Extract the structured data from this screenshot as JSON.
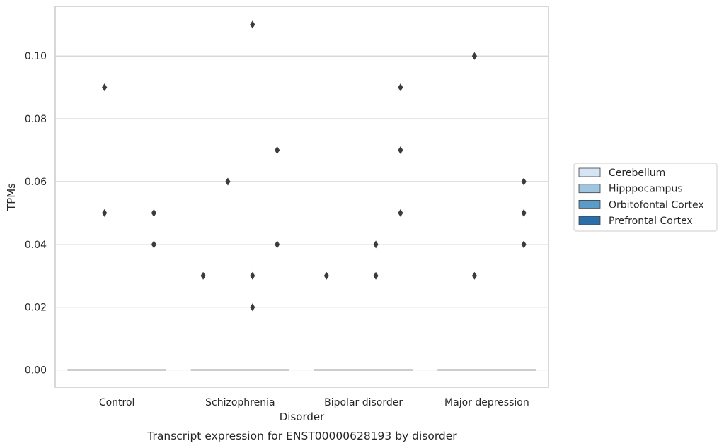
{
  "chart_data": {
    "type": "box",
    "categories": [
      "Control",
      "Schizophrenia",
      "Bipolar disorder",
      "Major depression"
    ],
    "xlabel": "Disorder",
    "ylabel": "TPMs",
    "caption": "Transcript expression for ENST00000628193 by disorder",
    "ylim": [
      -0.0055,
      0.1158
    ],
    "yticks": [
      0.0,
      0.02,
      0.04,
      0.06,
      0.08,
      0.1
    ],
    "ytick_labels": [
      "0.00",
      "0.02",
      "0.04",
      "0.06",
      "0.08",
      "0.10"
    ],
    "grid": true,
    "legend_placement": "center-right",
    "series": [
      {
        "name": "Cerebellum",
        "color": "#d6e5f3",
        "median": [
          0,
          0,
          0,
          0
        ],
        "outliers": [
          [],
          [
            0.03
          ],
          [
            0.03
          ],
          []
        ]
      },
      {
        "name": "Hipppocampus",
        "color": "#a0c5de",
        "median": [
          0,
          0,
          0,
          0
        ],
        "outliers": [
          [
            0.09,
            0.05
          ],
          [
            0.06
          ],
          [],
          [
            0.1,
            0.03
          ]
        ]
      },
      {
        "name": "Orbitofontal Cortex",
        "color": "#5a9bc9",
        "median": [
          0,
          0,
          0,
          0
        ],
        "outliers": [
          [],
          [
            0.11,
            0.03,
            0.02
          ],
          [
            0.04,
            0.03
          ],
          []
        ]
      },
      {
        "name": "Prefrontal Cortex",
        "color": "#2b6ea9",
        "median": [
          0,
          0,
          0,
          0
        ],
        "outliers": [
          [
            0.05,
            0.04
          ],
          [
            0.07,
            0.04
          ],
          [
            0.09,
            0.07,
            0.05
          ],
          [
            0.06,
            0.05,
            0.04
          ]
        ]
      }
    ]
  }
}
